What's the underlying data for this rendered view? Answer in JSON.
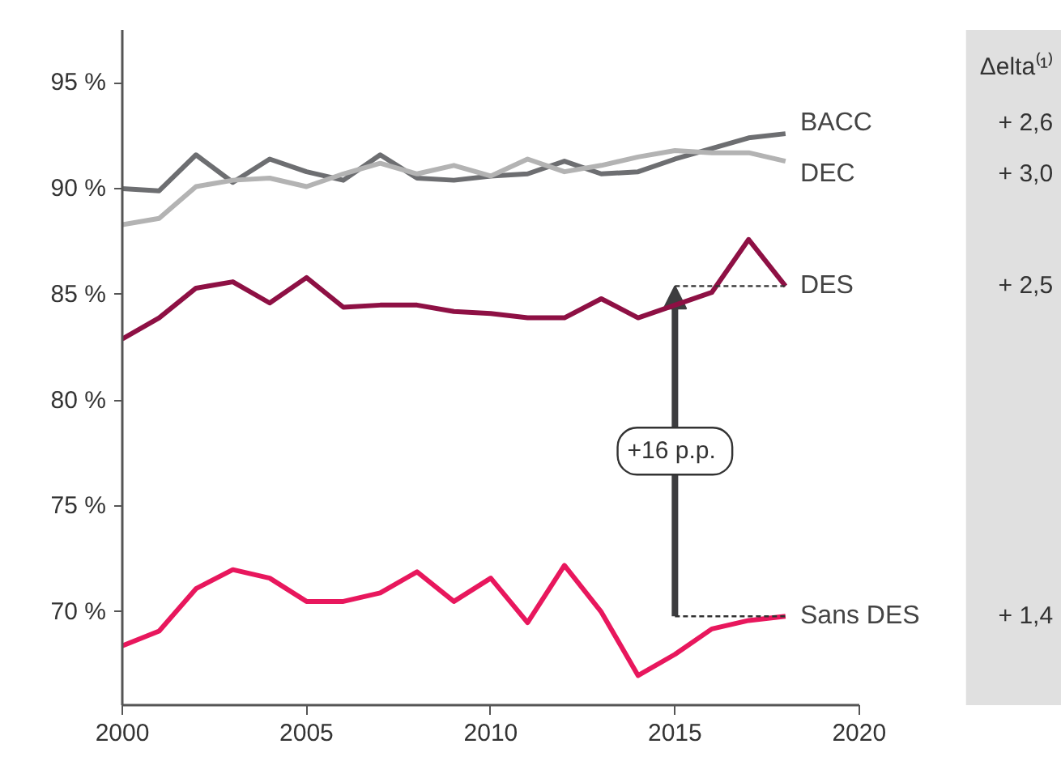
{
  "chart_data": {
    "type": "line",
    "x": [
      2000,
      2001,
      2002,
      2003,
      2004,
      2005,
      2006,
      2007,
      2008,
      2009,
      2010,
      2011,
      2012,
      2013,
      2014,
      2015,
      2016,
      2017,
      2018
    ],
    "series": [
      {
        "name": "BACC",
        "color": "#6d6e71",
        "values": [
          90.0,
          89.9,
          91.6,
          90.3,
          91.4,
          90.8,
          90.4,
          91.6,
          90.5,
          90.4,
          90.6,
          90.7,
          91.3,
          90.7,
          90.8,
          91.4,
          91.9,
          92.4,
          92.6
        ]
      },
      {
        "name": "DEC",
        "color": "#b3b3b3",
        "values": [
          88.3,
          88.6,
          90.1,
          90.4,
          90.5,
          90.1,
          90.7,
          91.2,
          90.7,
          91.1,
          90.6,
          91.4,
          90.8,
          91.1,
          91.5,
          91.8,
          91.7,
          91.7,
          91.3
        ]
      },
      {
        "name": "DES",
        "color": "#8e1044",
        "values": [
          82.9,
          83.9,
          85.3,
          85.6,
          84.6,
          85.8,
          84.4,
          84.5,
          84.5,
          84.2,
          84.1,
          83.9,
          83.9,
          84.8,
          83.9,
          84.5,
          85.1,
          87.6,
          85.4
        ]
      },
      {
        "name": "Sans DES",
        "color": "#e8175d",
        "values": [
          68.4,
          69.1,
          71.1,
          72.0,
          71.6,
          70.5,
          70.5,
          70.9,
          71.9,
          70.5,
          71.6,
          69.5,
          72.2,
          70.0,
          67.0,
          68.0,
          69.2,
          69.6,
          69.8
        ]
      }
    ],
    "xlim": [
      2000,
      2020
    ],
    "xticks": [
      2000,
      2005,
      2010,
      2015,
      2020
    ],
    "ylim": [
      65.6,
      97.5
    ],
    "yticks": [
      {
        "value": 70,
        "label": "70 %"
      },
      {
        "value": 75,
        "label": "75 %"
      },
      {
        "value": 80,
        "label": "80 %"
      },
      {
        "value": 85,
        "label": "85 %"
      },
      {
        "value": 90,
        "label": "90 %"
      },
      {
        "value": 95,
        "label": "95 %"
      }
    ],
    "grid": false,
    "annotations": [
      "+16  p.p.",
      "Δelta⁽¹⁾",
      "+ 2,6",
      "+ 3,0",
      "+ 2,5",
      "+ 1,4"
    ]
  }
}
